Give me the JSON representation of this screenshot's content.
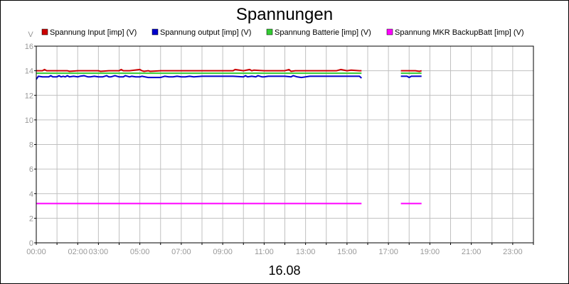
{
  "chart_data": {
    "type": "line",
    "title": "Spannungen",
    "xlabel": "16.08",
    "ylabel": "V",
    "ylim": [
      0,
      16
    ],
    "yticks": [
      0,
      2,
      4,
      6,
      8,
      10,
      12,
      14,
      16
    ],
    "xlim": [
      0,
      24
    ],
    "xtick_labels": [
      "00:00",
      "02:00",
      "03:00",
      "05:00",
      "07:00",
      "09:00",
      "11:00",
      "13:00",
      "15:00",
      "17:00",
      "19:00",
      "21:00",
      "23:00"
    ],
    "xtick_hours": [
      0,
      2,
      3,
      5,
      7,
      9,
      11,
      13,
      15,
      17,
      19,
      21,
      23
    ],
    "grid": true,
    "legend_position": "top",
    "series": [
      {
        "name": "Spannung Input [imp] (V)",
        "color": "#cc0000",
        "segments": [
          {
            "x": [
              0,
              0.3,
              0.4,
              0.5,
              1,
              1.5,
              1.6,
              2,
              2.5,
              3,
              3.1,
              3.5,
              4,
              4.1,
              4.2,
              4.5,
              5,
              5.1,
              5.2,
              5.4,
              5.5,
              6,
              7,
              8,
              9,
              9.5,
              9.6,
              10,
              10.3,
              10.4,
              10.5,
              11,
              11.5,
              12,
              12.2,
              12.3,
              12.5,
              13,
              14,
              14.5,
              14.7,
              15,
              15.2,
              15.6,
              15.7
            ],
            "y": [
              14.0,
              14.0,
              14.1,
              14.0,
              14.0,
              14.0,
              13.95,
              14.0,
              14.0,
              14.0,
              13.95,
              14.0,
              14.0,
              14.1,
              14.0,
              14.0,
              14.1,
              14.0,
              13.95,
              14.0,
              13.95,
              14.0,
              14.0,
              14.0,
              14.0,
              14.0,
              14.1,
              14.0,
              14.1,
              14.0,
              14.05,
              14.0,
              14.0,
              14.0,
              14.1,
              13.95,
              14.0,
              14.0,
              14.0,
              14.0,
              14.1,
              14.0,
              14.05,
              14.0,
              14.0
            ]
          },
          {
            "x": [
              17.6,
              18.0,
              18.3,
              18.5,
              18.6
            ],
            "y": [
              14.0,
              14.0,
              14.0,
              13.95,
              14.0
            ]
          }
        ]
      },
      {
        "name": "Spannung output [imp] (V)",
        "color": "#0000cc",
        "segments": [
          {
            "x": [
              0,
              0.1,
              0.3,
              0.6,
              0.7,
              0.8,
              1.0,
              1.1,
              1.2,
              1.3,
              1.4,
              1.5,
              1.6,
              1.8,
              2.0,
              2.1,
              2.3,
              2.5,
              2.6,
              2.8,
              3.0,
              3.2,
              3.4,
              3.5,
              3.6,
              3.8,
              4.0,
              4.2,
              4.3,
              4.5,
              4.6,
              4.8,
              5.0,
              5.1,
              5.4,
              5.6,
              6.0,
              6.2,
              6.4,
              6.6,
              6.8,
              7.0,
              7.2,
              7.4,
              7.6,
              8.0,
              8.5,
              9.0,
              9.5,
              10.0,
              10.1,
              10.2,
              10.4,
              10.6,
              10.7,
              10.9,
              11.0,
              11.2,
              11.5,
              12.0,
              12.3,
              12.4,
              12.6,
              12.8,
              13.0,
              13.2,
              13.5,
              14.0,
              14.5,
              14.8,
              15.0,
              15.3,
              15.6,
              15.7
            ],
            "y": [
              13.3,
              13.55,
              13.5,
              13.5,
              13.6,
              13.5,
              13.5,
              13.6,
              13.5,
              13.55,
              13.5,
              13.6,
              13.5,
              13.55,
              13.5,
              13.55,
              13.6,
              13.5,
              13.5,
              13.55,
              13.5,
              13.5,
              13.6,
              13.5,
              13.5,
              13.6,
              13.5,
              13.5,
              13.6,
              13.5,
              13.55,
              13.5,
              13.5,
              13.55,
              13.45,
              13.45,
              13.45,
              13.55,
              13.5,
              13.5,
              13.55,
              13.5,
              13.5,
              13.55,
              13.5,
              13.55,
              13.55,
              13.55,
              13.55,
              13.5,
              13.6,
              13.5,
              13.55,
              13.5,
              13.6,
              13.5,
              13.5,
              13.55,
              13.55,
              13.55,
              13.5,
              13.6,
              13.5,
              13.45,
              13.5,
              13.55,
              13.55,
              13.55,
              13.55,
              13.55,
              13.55,
              13.55,
              13.55,
              13.4
            ]
          },
          {
            "x": [
              17.6,
              17.9,
              18.0,
              18.1,
              18.3,
              18.6
            ],
            "y": [
              13.55,
              13.55,
              13.45,
              13.55,
              13.55,
              13.55
            ]
          }
        ]
      },
      {
        "name": "Spannung Batterie [imp] (V)",
        "color": "#33cc33",
        "segments": [
          {
            "x": [
              0,
              15.7
            ],
            "y": [
              13.8,
              13.8
            ]
          },
          {
            "x": [
              17.6,
              18.6
            ],
            "y": [
              13.8,
              13.8
            ]
          }
        ]
      },
      {
        "name": "Spannung MKR BackupBatt [imp] (V)",
        "color": "#ff00ff",
        "segments": [
          {
            "x": [
              0,
              15.7
            ],
            "y": [
              3.2,
              3.2
            ]
          },
          {
            "x": [
              17.6,
              18.6
            ],
            "y": [
              3.2,
              3.2
            ]
          }
        ]
      }
    ]
  }
}
